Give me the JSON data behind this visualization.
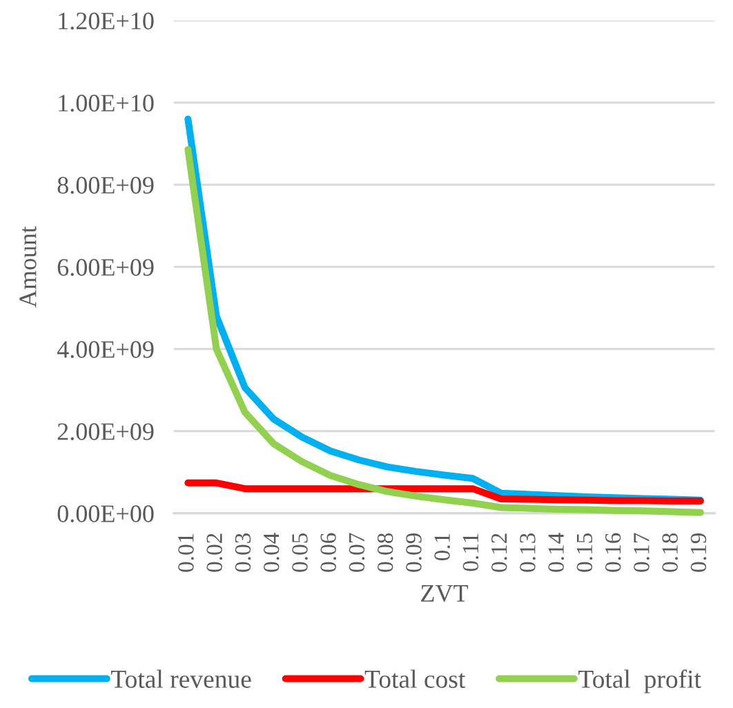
{
  "chart_data": {
    "type": "line",
    "xlabel": "ZVT",
    "ylabel": "Amount",
    "categories": [
      "0.01",
      "0.02",
      "0.03",
      "0.04",
      "0.05",
      "0.06",
      "0.07",
      "0.08",
      "0.09",
      "0.1",
      "0.11",
      "0.12",
      "0.13",
      "0.14",
      "0.15",
      "0.16",
      "0.17",
      "0.18",
      "0.19"
    ],
    "series": [
      {
        "name": "Total revenue",
        "color": "#00b0f0",
        "values": [
          9600000000,
          4800000000,
          3060000000,
          2300000000,
          1860000000,
          1520000000,
          1300000000,
          1130000000,
          1020000000,
          930000000,
          850000000,
          490000000,
          460000000,
          430000000,
          400000000,
          380000000,
          360000000,
          340000000,
          320000000
        ]
      },
      {
        "name": "Total cost",
        "color": "#ff0000",
        "values": [
          740000000,
          740000000,
          600000000,
          600000000,
          600000000,
          600000000,
          600000000,
          600000000,
          600000000,
          600000000,
          600000000,
          350000000,
          340000000,
          330000000,
          320000000,
          310000000,
          310000000,
          300000000,
          300000000
        ]
      },
      {
        "name": "Total  profit",
        "color": "#92d050",
        "values": [
          8860000000,
          4000000000,
          2460000000,
          1700000000,
          1260000000,
          920000000,
          700000000,
          530000000,
          420000000,
          330000000,
          250000000,
          140000000,
          120000000,
          100000000,
          90000000,
          70000000,
          60000000,
          40000000,
          20000000
        ]
      }
    ],
    "ylim": [
      0,
      12000000000
    ],
    "yticks": [
      {
        "value": 0,
        "label": "0.00E+00"
      },
      {
        "value": 2000000000,
        "label": "2.00E+09"
      },
      {
        "value": 4000000000,
        "label": "4.00E+09"
      },
      {
        "value": 6000000000,
        "label": "6.00E+09"
      },
      {
        "value": 8000000000,
        "label": "8.00E+09"
      },
      {
        "value": 10000000000,
        "label": "1.00E+10"
      },
      {
        "value": 12000000000,
        "label": "1.20E+10"
      }
    ],
    "grid": "y",
    "legend": "bottom",
    "marker": "none",
    "line_style": "solid"
  }
}
